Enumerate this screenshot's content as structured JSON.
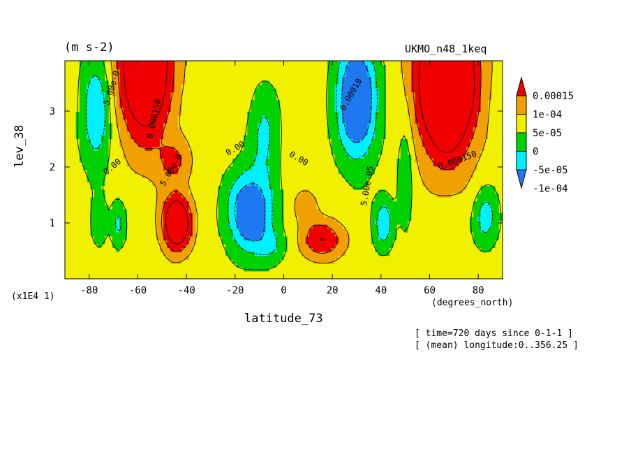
{
  "chart_data": {
    "type": "heatmap",
    "title": "UKMO_n48_1keq",
    "units_label": "(m s-2)",
    "xlabel": "latitude_73",
    "ylabel": "lev_38",
    "x_units": "(degrees_north)",
    "y_scale_note": "(x1E4 1)",
    "annotations": [
      "[ time=720 days since 0-1-1 ]",
      "[ (mean) longitude:0..356.25 ]"
    ],
    "xlim": [
      -90,
      90
    ],
    "ylim": [
      0,
      3.9
    ],
    "x_ticks": [
      -80,
      -60,
      -40,
      -20,
      0,
      20,
      40,
      60,
      80
    ],
    "x_tick_labels": [
      "-80",
      "-60",
      "-40",
      "-20",
      "0",
      "20",
      "40",
      "60",
      "80"
    ],
    "y_ticks": [
      1,
      2,
      3
    ],
    "y_tick_labels": [
      "1",
      "2",
      "3"
    ],
    "colorbar": {
      "levels": [
        -0.0001,
        -5e-05,
        0,
        5e-05,
        0.0001,
        0.00015
      ],
      "labels": [
        "0.00015",
        "1e-04",
        "5e-05",
        "0",
        "-5e-05",
        "-1e-04"
      ],
      "colors": [
        "#1e78f0",
        "#00f0ff",
        "#00d200",
        "#f0f000",
        "#f0a000",
        "#f00000"
      ]
    },
    "features": [
      {
        "kind": "region",
        "level": 0.00015,
        "x": [
          -72,
          -42,
          -35
        ],
        "y": [
          3.9,
          2.2,
          3.9
        ]
      },
      {
        "kind": "region",
        "level": 0.00015,
        "x": [
          -50,
          -40,
          -32
        ],
        "y": [
          1.4,
          0.4,
          1.4
        ]
      },
      {
        "kind": "region",
        "level": 0.00015,
        "x": [
          50,
          65,
          86
        ],
        "y": [
          3.9,
          2.0,
          3.9
        ]
      },
      {
        "kind": "region",
        "level": -0.0001,
        "x": [
          -30,
          -10,
          -5
        ],
        "y": [
          1.8,
          0.5,
          1.6
        ]
      },
      {
        "kind": "region",
        "level": -0.0001,
        "x": [
          20,
          35,
          45
        ],
        "y": [
          3.9,
          2.2,
          3.9
        ]
      },
      {
        "kind": "region",
        "level": 0.0001,
        "x": [
          5,
          18,
          26
        ],
        "y": [
          1.0,
          0.3,
          0.9
        ]
      }
    ],
    "contour_labels": [
      "5.00e-0",
      "0.000150",
      "0.00",
      "5.00e-0",
      "0.00",
      "0.00010",
      "0.000150",
      "0.00",
      "5.00e-05"
    ]
  }
}
